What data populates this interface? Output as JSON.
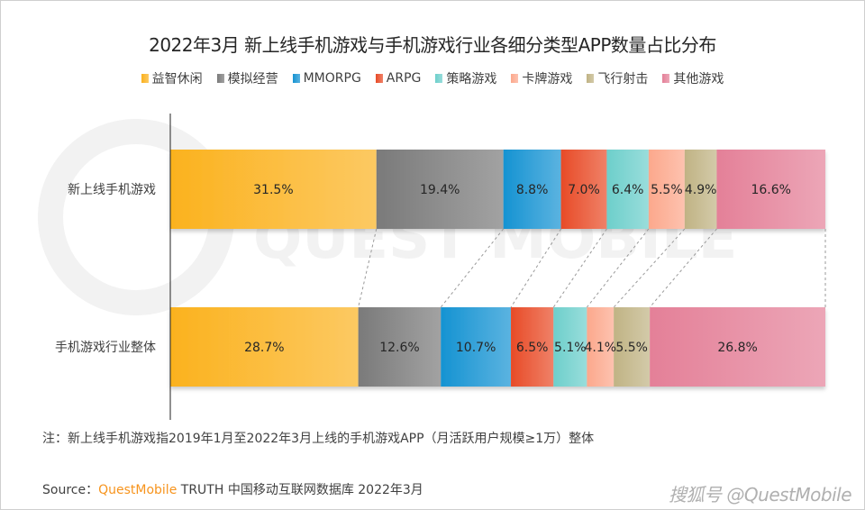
{
  "chart_data": {
    "type": "bar",
    "orientation": "horizontal",
    "stacked": "100%",
    "title": "2022年3月 新上线手机游戏与手机游戏行业各细分类型APP数量占比分布",
    "categories": [
      "新上线手机游戏",
      "手机游戏行业整体"
    ],
    "series": [
      {
        "name": "益智休闲",
        "color": "#fbb21e",
        "values": [
          31.5,
          28.7
        ]
      },
      {
        "name": "模拟经营",
        "color": "#7a7a7a",
        "values": [
          19.4,
          12.6
        ]
      },
      {
        "name": "MMORPG",
        "color": "#1593d2",
        "values": [
          8.8,
          10.7
        ]
      },
      {
        "name": "ARPG",
        "color": "#e84b27",
        "values": [
          7.0,
          6.5
        ]
      },
      {
        "name": "策略游戏",
        "color": "#6dcfcb",
        "values": [
          6.4,
          5.1
        ]
      },
      {
        "name": "卡牌游戏",
        "color": "#fca88c",
        "values": [
          5.5,
          4.1
        ]
      },
      {
        "name": "飞行射击",
        "color": "#c0b384",
        "values": [
          4.9,
          5.5
        ]
      },
      {
        "name": "其他游戏",
        "color": "#e48098",
        "values": [
          16.6,
          26.8
        ]
      }
    ],
    "data_labels": [
      [
        "31.5%",
        "19.4%",
        "8.8%",
        "7.0%",
        "6.4%",
        "5.5%",
        "4.9%",
        "16.6%"
      ],
      [
        "28.7%",
        "12.6%",
        "10.7%",
        "6.5%",
        "5.1%",
        "4.1%",
        "5.5%",
        "26.8%"
      ]
    ],
    "legend_position": "top",
    "grid": false
  },
  "footer": {
    "note": "注：新上线手机游戏指2019年1月至2022年3月上线的手机游戏APP（月活跃用户规模≥1万）整体",
    "source_prefix": "Source：",
    "source_brand": "QuestMobile",
    "source_rest": " TRUTH 中国移动互联网数据库 2022年3月",
    "watermark": "搜狐号 @QuestMobile"
  },
  "background_watermark": "QUEST MOBILE"
}
